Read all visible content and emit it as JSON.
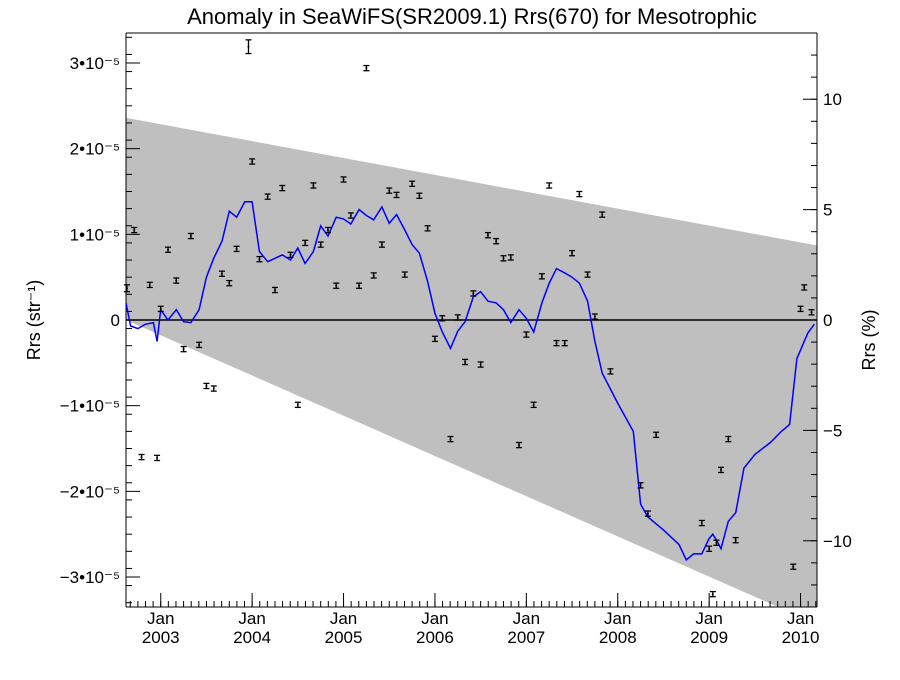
{
  "chart_data": {
    "type": "scatter",
    "title": "Anomaly in SeaWiFS(SR2009.1) Rrs(670) for Mesotrophic",
    "ylabel": "Rrs (str⁻¹)",
    "y2label": "Rrs (%)",
    "xlim": [
      2002.62,
      2010.18
    ],
    "ylim": [
      -3.35e-05,
      3.35e-05
    ],
    "y2lim": [
      -13.0,
      13.0
    ],
    "grid": false,
    "x_ticks": [
      {
        "x": 2003.0,
        "top": "Jan",
        "bottom": "2003"
      },
      {
        "x": 2004.0,
        "top": "Jan",
        "bottom": "2004"
      },
      {
        "x": 2005.0,
        "top": "Jan",
        "bottom": "2005"
      },
      {
        "x": 2006.0,
        "top": "Jan",
        "bottom": "2006"
      },
      {
        "x": 2007.0,
        "top": "Jan",
        "bottom": "2007"
      },
      {
        "x": 2008.0,
        "top": "Jan",
        "bottom": "2008"
      },
      {
        "x": 2009.0,
        "top": "Jan",
        "bottom": "2009"
      },
      {
        "x": 2010.0,
        "top": "Jan",
        "bottom": "2010"
      }
    ],
    "y_ticks": [
      {
        "v": 3e-05,
        "label": "3•10⁻⁵"
      },
      {
        "v": 2e-05,
        "label": "2•10⁻⁵"
      },
      {
        "v": 1e-05,
        "label": "1•10⁻⁵"
      },
      {
        "v": 0,
        "label": "0"
      },
      {
        "v": -1e-05,
        "label": "−1•10⁻⁵"
      },
      {
        "v": -2e-05,
        "label": "−2•10⁻⁵"
      },
      {
        "v": -3e-05,
        "label": "−3•10⁻⁵"
      }
    ],
    "y2_ticks": [
      {
        "v": 10,
        "label": "10"
      },
      {
        "v": 5,
        "label": "5"
      },
      {
        "v": 0,
        "label": "0"
      },
      {
        "v": -5,
        "label": "−5"
      },
      {
        "v": -10,
        "label": "−10"
      }
    ],
    "band": {
      "upper": [
        [
          2002.62,
          2.36e-05
        ],
        [
          2010.18,
          8.7e-06
        ]
      ],
      "lower": [
        [
          2002.62,
          0.0
        ],
        [
          2010.18,
          -3.55e-05
        ]
      ],
      "color": "#bfbfbf"
    },
    "series": [
      {
        "kind": "points_with_errorbars",
        "color": "#000000",
        "points": [
          {
            "x": 2002.63,
            "y": 3.7e-06,
            "err": 4e-07
          },
          {
            "x": 2002.71,
            "y": 1.05e-05,
            "err": 3e-07
          },
          {
            "x": 2002.79,
            "y": -1.6e-05,
            "err": 3e-07
          },
          {
            "x": 2002.88,
            "y": 4.1e-06,
            "err": 3e-07
          },
          {
            "x": 2002.96,
            "y": -1.61e-05,
            "err": 3e-07
          },
          {
            "x": 2003.0,
            "y": 1.3e-06,
            "err": 3e-07
          },
          {
            "x": 2003.08,
            "y": 8.2e-06,
            "err": 3e-07
          },
          {
            "x": 2003.17,
            "y": 4.6e-06,
            "err": 3e-07
          },
          {
            "x": 2003.25,
            "y": -3.4e-06,
            "err": 3e-07
          },
          {
            "x": 2003.33,
            "y": 9.8e-06,
            "err": 3e-07
          },
          {
            "x": 2003.42,
            "y": -2.9e-06,
            "err": 3e-07
          },
          {
            "x": 2003.5,
            "y": -7.7e-06,
            "err": 3e-07
          },
          {
            "x": 2003.58,
            "y": -8e-06,
            "err": 3e-07
          },
          {
            "x": 2003.67,
            "y": 5.4e-06,
            "err": 3e-07
          },
          {
            "x": 2003.75,
            "y": 4.3e-06,
            "err": 3e-07
          },
          {
            "x": 2003.83,
            "y": 8.3e-06,
            "err": 3e-07
          },
          {
            "x": 2003.96,
            "y": 3.19e-05,
            "err": 8e-07
          },
          {
            "x": 2004.0,
            "y": 1.85e-05,
            "err": 3e-07
          },
          {
            "x": 2004.08,
            "y": 7.1e-06,
            "err": 3e-07
          },
          {
            "x": 2004.17,
            "y": 1.44e-05,
            "err": 3e-07
          },
          {
            "x": 2004.25,
            "y": 3.5e-06,
            "err": 3e-07
          },
          {
            "x": 2004.33,
            "y": 1.54e-05,
            "err": 3e-07
          },
          {
            "x": 2004.42,
            "y": 7.6e-06,
            "err": 3e-07
          },
          {
            "x": 2004.5,
            "y": -9.9e-06,
            "err": 3e-07
          },
          {
            "x": 2004.58,
            "y": 9e-06,
            "err": 3e-07
          },
          {
            "x": 2004.67,
            "y": 1.57e-05,
            "err": 3e-07
          },
          {
            "x": 2004.75,
            "y": 8.8e-06,
            "err": 3e-07
          },
          {
            "x": 2004.83,
            "y": 1.05e-05,
            "err": 3e-07
          },
          {
            "x": 2004.92,
            "y": 4e-06,
            "err": 3e-07
          },
          {
            "x": 2005.0,
            "y": 1.64e-05,
            "err": 3e-07
          },
          {
            "x": 2005.08,
            "y": 1.22e-05,
            "err": 3e-07
          },
          {
            "x": 2005.17,
            "y": 4e-06,
            "err": 3e-07
          },
          {
            "x": 2005.25,
            "y": 2.94e-05,
            "err": 3e-07
          },
          {
            "x": 2005.33,
            "y": 5.2e-06,
            "err": 3e-07
          },
          {
            "x": 2005.42,
            "y": 8.8e-06,
            "err": 3e-07
          },
          {
            "x": 2005.5,
            "y": 1.51e-05,
            "err": 3e-07
          },
          {
            "x": 2005.58,
            "y": 1.46e-05,
            "err": 3e-07
          },
          {
            "x": 2005.67,
            "y": 5.3e-06,
            "err": 3e-07
          },
          {
            "x": 2005.75,
            "y": 1.59e-05,
            "err": 3e-07
          },
          {
            "x": 2005.83,
            "y": 1.45e-05,
            "err": 3e-07
          },
          {
            "x": 2005.92,
            "y": 1.07e-05,
            "err": 3e-07
          },
          {
            "x": 2006.0,
            "y": -2.2e-06,
            "err": 3e-07
          },
          {
            "x": 2006.08,
            "y": 2e-07,
            "err": 3e-07
          },
          {
            "x": 2006.17,
            "y": -1.39e-05,
            "err": 3e-07
          },
          {
            "x": 2006.25,
            "y": 3e-07,
            "err": 3e-07
          },
          {
            "x": 2006.33,
            "y": -4.9e-06,
            "err": 3e-07
          },
          {
            "x": 2006.42,
            "y": 3.1e-06,
            "err": 3e-07
          },
          {
            "x": 2006.5,
            "y": -5.2e-06,
            "err": 3e-07
          },
          {
            "x": 2006.58,
            "y": 9.9e-06,
            "err": 3e-07
          },
          {
            "x": 2006.67,
            "y": 9.2e-06,
            "err": 3e-07
          },
          {
            "x": 2006.75,
            "y": 7.2e-06,
            "err": 3e-07
          },
          {
            "x": 2006.83,
            "y": 7.3e-06,
            "err": 3e-07
          },
          {
            "x": 2006.92,
            "y": -1.46e-05,
            "err": 3e-07
          },
          {
            "x": 2007.0,
            "y": -1.7e-06,
            "err": 3e-07
          },
          {
            "x": 2007.08,
            "y": -9.9e-06,
            "err": 3e-07
          },
          {
            "x": 2007.17,
            "y": 5.1e-06,
            "err": 3e-07
          },
          {
            "x": 2007.25,
            "y": 1.57e-05,
            "err": 3e-07
          },
          {
            "x": 2007.33,
            "y": -2.7e-06,
            "err": 3e-07
          },
          {
            "x": 2007.42,
            "y": -2.7e-06,
            "err": 3e-07
          },
          {
            "x": 2007.5,
            "y": 7.8e-06,
            "err": 3e-07
          },
          {
            "x": 2007.58,
            "y": 1.47e-05,
            "err": 3e-07
          },
          {
            "x": 2007.67,
            "y": 5.3e-06,
            "err": 3e-07
          },
          {
            "x": 2007.75,
            "y": 4e-07,
            "err": 3e-07
          },
          {
            "x": 2007.83,
            "y": 1.23e-05,
            "err": 3e-07
          },
          {
            "x": 2007.92,
            "y": -6e-06,
            "err": 3e-07
          },
          {
            "x": 2008.25,
            "y": -1.93e-05,
            "err": 3e-07
          },
          {
            "x": 2008.33,
            "y": -2.26e-05,
            "err": 3e-07
          },
          {
            "x": 2008.42,
            "y": -1.34e-05,
            "err": 3e-07
          },
          {
            "x": 2008.92,
            "y": -2.37e-05,
            "err": 3e-07
          },
          {
            "x": 2009.0,
            "y": -2.67e-05,
            "err": 3e-07
          },
          {
            "x": 2009.04,
            "y": -3.2e-05,
            "err": 3e-07
          },
          {
            "x": 2009.08,
            "y": -2.6e-05,
            "err": 3e-07
          },
          {
            "x": 2009.13,
            "y": -1.75e-05,
            "err": 3e-07
          },
          {
            "x": 2009.21,
            "y": -1.39e-05,
            "err": 3e-07
          },
          {
            "x": 2009.29,
            "y": -2.57e-05,
            "err": 3e-07
          },
          {
            "x": 2009.92,
            "y": -2.88e-05,
            "err": 3e-07
          },
          {
            "x": 2010.0,
            "y": 1.3e-06,
            "err": 3e-07
          },
          {
            "x": 2010.04,
            "y": 3.8e-06,
            "err": 3e-07
          },
          {
            "x": 2010.12,
            "y": 9e-07,
            "err": 3e-07
          }
        ]
      },
      {
        "kind": "line",
        "color": "#0000ff",
        "points": [
          [
            2002.62,
            2e-06
          ],
          [
            2002.67,
            -7e-07
          ],
          [
            2002.75,
            -1e-06
          ],
          [
            2002.83,
            -5e-07
          ],
          [
            2002.92,
            -3e-07
          ],
          [
            2002.96,
            -2.5e-06
          ],
          [
            2003.0,
            1.2e-06
          ],
          [
            2003.08,
            0.0
          ],
          [
            2003.17,
            1.2e-06
          ],
          [
            2003.25,
            -2e-07
          ],
          [
            2003.33,
            -3e-07
          ],
          [
            2003.42,
            1.2e-06
          ],
          [
            2003.5,
            5e-06
          ],
          [
            2003.58,
            7.2e-06
          ],
          [
            2003.67,
            9.2e-06
          ],
          [
            2003.75,
            1.27e-05
          ],
          [
            2003.83,
            1.2e-05
          ],
          [
            2003.92,
            1.38e-05
          ],
          [
            2004.0,
            1.38e-05
          ],
          [
            2004.08,
            8e-06
          ],
          [
            2004.17,
            6.8e-06
          ],
          [
            2004.25,
            7.2e-06
          ],
          [
            2004.33,
            7.6e-06
          ],
          [
            2004.42,
            7e-06
          ],
          [
            2004.5,
            8.4e-06
          ],
          [
            2004.58,
            6.6e-06
          ],
          [
            2004.67,
            8e-06
          ],
          [
            2004.75,
            1.1e-05
          ],
          [
            2004.83,
            9.8e-06
          ],
          [
            2004.92,
            1.2e-05
          ],
          [
            2005.0,
            1.18e-05
          ],
          [
            2005.08,
            1.12e-05
          ],
          [
            2005.17,
            1.29e-05
          ],
          [
            2005.25,
            1.22e-05
          ],
          [
            2005.33,
            1.17e-05
          ],
          [
            2005.42,
            1.32e-05
          ],
          [
            2005.5,
            1.13e-05
          ],
          [
            2005.58,
            1.23e-05
          ],
          [
            2005.67,
            1.05e-05
          ],
          [
            2005.75,
            8.8e-06
          ],
          [
            2005.83,
            7.8e-06
          ],
          [
            2005.92,
            4.5e-06
          ],
          [
            2006.0,
            8e-07
          ],
          [
            2006.08,
            -1.4e-06
          ],
          [
            2006.17,
            -3.3e-06
          ],
          [
            2006.25,
            -1.3e-06
          ],
          [
            2006.33,
            -2e-07
          ],
          [
            2006.42,
            2.7e-06
          ],
          [
            2006.5,
            3.3e-06
          ],
          [
            2006.58,
            2.2e-06
          ],
          [
            2006.67,
            2e-06
          ],
          [
            2006.75,
            1.2e-06
          ],
          [
            2006.83,
            -3e-07
          ],
          [
            2006.92,
            1.2e-06
          ],
          [
            2007.0,
            2e-07
          ],
          [
            2007.08,
            -1.4e-06
          ],
          [
            2007.17,
            2e-06
          ],
          [
            2007.25,
            4.3e-06
          ],
          [
            2007.33,
            6e-06
          ],
          [
            2007.42,
            5.5e-06
          ],
          [
            2007.5,
            5e-06
          ],
          [
            2007.58,
            4.3e-06
          ],
          [
            2007.67,
            2.2e-06
          ],
          [
            2007.75,
            -2.5e-06
          ],
          [
            2007.83,
            -6.2e-06
          ],
          [
            2008.0,
            -9.7e-06
          ],
          [
            2008.17,
            -1.3e-05
          ],
          [
            2008.25,
            -2.15e-05
          ],
          [
            2008.33,
            -2.3e-05
          ],
          [
            2008.5,
            -2.45e-05
          ],
          [
            2008.67,
            -2.62e-05
          ],
          [
            2008.75,
            -2.8e-05
          ],
          [
            2008.83,
            -2.73e-05
          ],
          [
            2008.92,
            -2.73e-05
          ],
          [
            2009.0,
            -2.55e-05
          ],
          [
            2009.04,
            -2.5e-05
          ],
          [
            2009.08,
            -2.57e-05
          ],
          [
            2009.13,
            -2.67e-05
          ],
          [
            2009.21,
            -2.35e-05
          ],
          [
            2009.29,
            -2.25e-05
          ],
          [
            2009.38,
            -1.73e-05
          ],
          [
            2009.5,
            -1.57e-05
          ],
          [
            2009.67,
            -1.43e-05
          ],
          [
            2009.79,
            -1.3e-05
          ],
          [
            2009.88,
            -1.22e-05
          ],
          [
            2009.96,
            -4.5e-06
          ],
          [
            2010.04,
            -2.5e-06
          ],
          [
            2010.08,
            -1.5e-06
          ],
          [
            2010.15,
            -5e-07
          ]
        ]
      },
      {
        "kind": "hline",
        "color": "#000000",
        "y": 0
      }
    ]
  }
}
